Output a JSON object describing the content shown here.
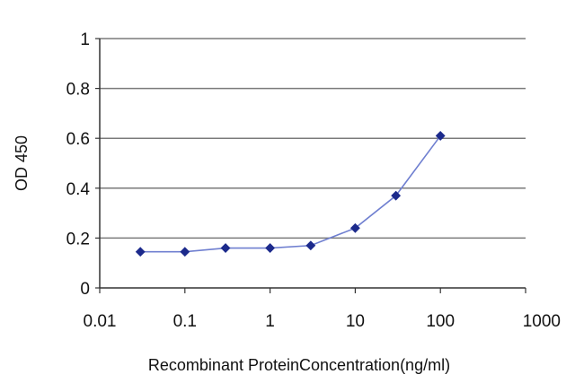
{
  "chart_data": {
    "type": "line",
    "title": "",
    "xlabel": "Recombinant ProteinConcentration(ng/ml)",
    "ylabel": "OD 450",
    "x_scale": "log",
    "xlim": [
      0.01,
      1000
    ],
    "ylim": [
      0,
      1
    ],
    "x_ticks": [
      0.01,
      0.1,
      1,
      10,
      100,
      1000
    ],
    "x_tick_labels": [
      "0.01",
      "0.1",
      "1",
      "10",
      "100",
      "1000"
    ],
    "y_ticks": [
      0,
      0.2,
      0.4,
      0.6,
      0.8,
      1
    ],
    "y_tick_labels": [
      "0",
      "0.2",
      "0.4",
      "0.6",
      "0.8",
      "1"
    ],
    "grid": "horizontal",
    "legend": "none",
    "series": [
      {
        "color": "#1c2a8c",
        "marker": "diamond",
        "x": [
          0.03,
          0.1,
          0.3,
          1,
          3,
          10,
          30,
          100
        ],
        "y": [
          0.145,
          0.145,
          0.16,
          0.16,
          0.17,
          0.24,
          0.37,
          0.61
        ]
      }
    ]
  }
}
